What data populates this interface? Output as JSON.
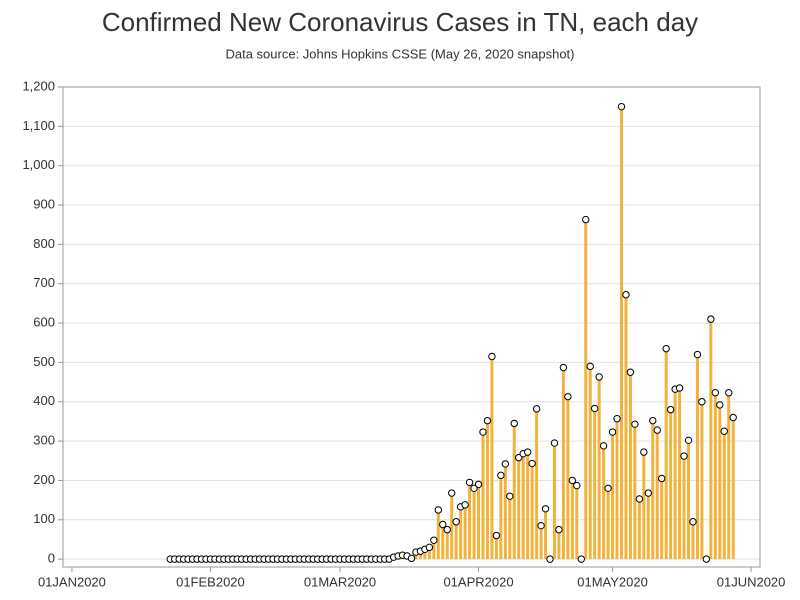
{
  "chart_data": {
    "type": "needle",
    "title": "Confirmed New Coronavirus Cases in TN, each day",
    "subtitle": "Data source: Johns Hopkins CSSE (May 26, 2020 snapshot)",
    "color": "#f2b33d",
    "marker_color": "#ffffff",
    "grid": true,
    "x": [
      "2020-01-23",
      "2020-01-24",
      "2020-01-25",
      "2020-01-26",
      "2020-01-27",
      "2020-01-28",
      "2020-01-29",
      "2020-01-30",
      "2020-01-31",
      "2020-02-01",
      "2020-02-02",
      "2020-02-03",
      "2020-02-04",
      "2020-02-05",
      "2020-02-06",
      "2020-02-07",
      "2020-02-08",
      "2020-02-09",
      "2020-02-10",
      "2020-02-11",
      "2020-02-12",
      "2020-02-13",
      "2020-02-14",
      "2020-02-15",
      "2020-02-16",
      "2020-02-17",
      "2020-02-18",
      "2020-02-19",
      "2020-02-20",
      "2020-02-21",
      "2020-02-22",
      "2020-02-23",
      "2020-02-24",
      "2020-02-25",
      "2020-02-26",
      "2020-02-27",
      "2020-02-28",
      "2020-02-29",
      "2020-03-01",
      "2020-03-02",
      "2020-03-03",
      "2020-03-04",
      "2020-03-05",
      "2020-03-06",
      "2020-03-07",
      "2020-03-08",
      "2020-03-09",
      "2020-03-10",
      "2020-03-11",
      "2020-03-12",
      "2020-03-13",
      "2020-03-14",
      "2020-03-15",
      "2020-03-16",
      "2020-03-17",
      "2020-03-18",
      "2020-03-19",
      "2020-03-20",
      "2020-03-21",
      "2020-03-22",
      "2020-03-23",
      "2020-03-24",
      "2020-03-25",
      "2020-03-26",
      "2020-03-27",
      "2020-03-28",
      "2020-03-29",
      "2020-03-30",
      "2020-03-31",
      "2020-04-01",
      "2020-04-02",
      "2020-04-03",
      "2020-04-04",
      "2020-04-05",
      "2020-04-06",
      "2020-04-07",
      "2020-04-08",
      "2020-04-09",
      "2020-04-10",
      "2020-04-11",
      "2020-04-12",
      "2020-04-13",
      "2020-04-14",
      "2020-04-15",
      "2020-04-16",
      "2020-04-17",
      "2020-04-18",
      "2020-04-19",
      "2020-04-20",
      "2020-04-21",
      "2020-04-22",
      "2020-04-23",
      "2020-04-24",
      "2020-04-25",
      "2020-04-26",
      "2020-04-27",
      "2020-04-28",
      "2020-04-29",
      "2020-04-30",
      "2020-05-01",
      "2020-05-02",
      "2020-05-03",
      "2020-05-04",
      "2020-05-05",
      "2020-05-06",
      "2020-05-07",
      "2020-05-08",
      "2020-05-09",
      "2020-05-10",
      "2020-05-11",
      "2020-05-12",
      "2020-05-13",
      "2020-05-14",
      "2020-05-15",
      "2020-05-16",
      "2020-05-17",
      "2020-05-18",
      "2020-05-19",
      "2020-05-20",
      "2020-05-21",
      "2020-05-22",
      "2020-05-23",
      "2020-05-24",
      "2020-05-25",
      "2020-05-26",
      "2020-05-27",
      "2020-05-28"
    ],
    "values": [
      0,
      0,
      0,
      0,
      0,
      0,
      0,
      0,
      0,
      0,
      0,
      0,
      0,
      0,
      0,
      0,
      0,
      0,
      0,
      0,
      0,
      0,
      0,
      0,
      0,
      0,
      0,
      0,
      0,
      0,
      0,
      0,
      0,
      0,
      0,
      0,
      0,
      0,
      0,
      0,
      0,
      0,
      0,
      0,
      0,
      0,
      0,
      0,
      0,
      0,
      5,
      8,
      10,
      8,
      2,
      18,
      20,
      25,
      30,
      48,
      125,
      88,
      75,
      168,
      95,
      133,
      138,
      195,
      180,
      190,
      323,
      352,
      515,
      60,
      213,
      242,
      160,
      345,
      258,
      268,
      272,
      243,
      382,
      85,
      128,
      0,
      295,
      75,
      487,
      413,
      200,
      187,
      0,
      863,
      490,
      383,
      463,
      288,
      180,
      323,
      357,
      1150,
      672,
      475,
      343,
      153,
      272,
      168,
      352,
      328,
      205,
      535,
      380,
      432,
      435,
      262,
      302,
      95,
      520,
      400,
      0,
      610,
      423,
      392,
      325,
      423,
      360
    ],
    "xlim": [
      "2019-12-30",
      "2020-06-03"
    ],
    "xticks": [
      {
        "value": "2020-01-01",
        "label": "01JAN2020"
      },
      {
        "value": "2020-02-01",
        "label": "01FEB2020"
      },
      {
        "value": "2020-03-01",
        "label": "01MAR2020"
      },
      {
        "value": "2020-04-01",
        "label": "01APR2020"
      },
      {
        "value": "2020-05-01",
        "label": "01MAY2020"
      },
      {
        "value": "2020-06-01",
        "label": "01JUN2020"
      }
    ],
    "ylim": [
      -20,
      1200
    ],
    "yticks": [
      0,
      100,
      200,
      300,
      400,
      500,
      600,
      700,
      800,
      900,
      {
        "value": 1000,
        "label": "1,000"
      },
      {
        "value": 1100,
        "label": "1,100"
      },
      {
        "value": 1200,
        "label": "1,200"
      }
    ]
  }
}
